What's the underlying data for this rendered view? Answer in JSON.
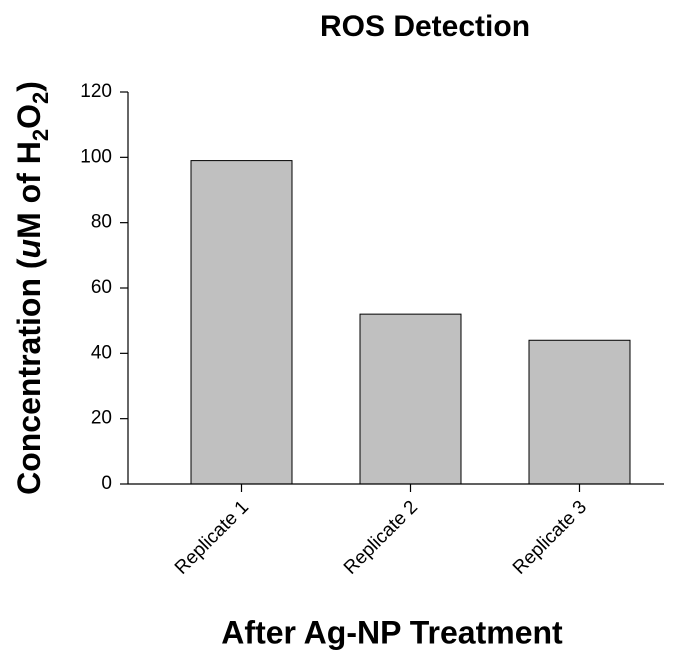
{
  "chart_data": {
    "type": "bar",
    "title": "ROS Detection",
    "x_label": "After Ag-NP Treatment",
    "y_label": {
      "before": "Concentration (",
      "italic": "u",
      "mid": "M of H",
      "sub1": "2",
      "o": "O",
      "sub2": "2",
      "after": ")"
    },
    "categories": [
      "Replicate 1",
      "Replicate 2",
      "Replicate 3"
    ],
    "values": [
      99,
      52,
      44
    ],
    "color": "#c0c0c0",
    "ylim": [
      0,
      120
    ],
    "yticks": [
      0,
      20,
      40,
      60,
      80,
      100,
      120
    ],
    "grid": false
  }
}
